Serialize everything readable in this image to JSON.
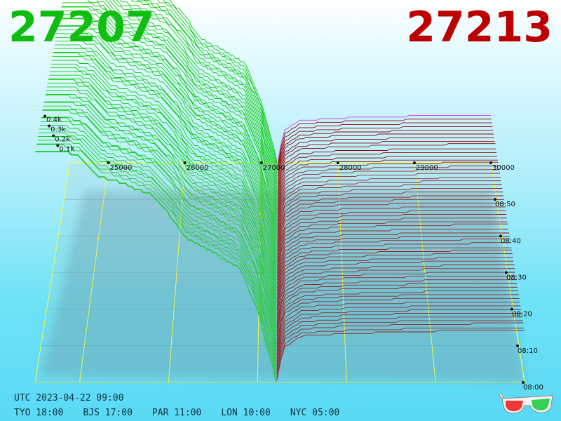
{
  "header": {
    "bid_price": "27207",
    "ask_price": "27213",
    "bid_color": "#10bb10",
    "ask_color": "#bb0000"
  },
  "footer": {
    "utc": "UTC 2023-04-22 09:00",
    "zones": [
      {
        "label": "TYO 18:00"
      },
      {
        "label": "BJS 17:00"
      },
      {
        "label": "PAR 11:00"
      },
      {
        "label": "LON 10:00"
      },
      {
        "label": "NYC 05:00"
      }
    ],
    "glasses_icon": "3d-glasses-icon"
  },
  "chart_data": {
    "type": "area",
    "title": "",
    "xlabel": "",
    "ylabel": "",
    "x_ticks": [
      {
        "value": 25000,
        "label": "25000"
      },
      {
        "value": 26000,
        "label": "26000"
      },
      {
        "value": 27000,
        "label": "27000"
      },
      {
        "value": 28000,
        "label": "28000"
      },
      {
        "value": 29000,
        "label": "29000"
      },
      {
        "value": 30000,
        "label": "30000"
      }
    ],
    "xlim": [
      24500,
      30000
    ],
    "z_ticks": [
      {
        "value": 100,
        "label": "0.1k"
      },
      {
        "value": 200,
        "label": "0.2k"
      },
      {
        "value": 300,
        "label": "0.3k"
      },
      {
        "value": 400,
        "label": "0.4k"
      }
    ],
    "zlim": [
      0,
      500
    ],
    "time_ticks": [
      {
        "value": 0,
        "label": "08:00"
      },
      {
        "value": 10,
        "label": "08:10"
      },
      {
        "value": 20,
        "label": "08:20"
      },
      {
        "value": 30,
        "label": "08:30"
      },
      {
        "value": 40,
        "label": "08:40"
      },
      {
        "value": 50,
        "label": "08:50"
      }
    ],
    "time_range_minutes": [
      0,
      60
    ],
    "snapshot_count": 60,
    "mid_price": 27210,
    "bid_series": {
      "name": "",
      "color": "#10cc10",
      "depth_profile": [
        {
          "price": 27205,
          "cum": 2
        },
        {
          "price": 27200,
          "cum": 8
        },
        {
          "price": 27150,
          "cum": 40
        },
        {
          "price": 27050,
          "cum": 95
        },
        {
          "price": 27000,
          "cum": 130
        },
        {
          "price": 26800,
          "cum": 205
        },
        {
          "price": 26500,
          "cum": 235
        },
        {
          "price": 26200,
          "cum": 260
        },
        {
          "price": 26000,
          "cum": 305
        },
        {
          "price": 25800,
          "cum": 340
        },
        {
          "price": 25500,
          "cum": 360
        },
        {
          "price": 25200,
          "cum": 375
        },
        {
          "price": 25000,
          "cum": 410
        },
        {
          "price": 24800,
          "cum": 420
        },
        {
          "price": 24500,
          "cum": 420
        }
      ]
    },
    "ask_series": {
      "name": "",
      "color": "#990000",
      "latest_color": "#cc44ff",
      "depth_profile": [
        {
          "price": 27215,
          "cum": 3
        },
        {
          "price": 27230,
          "cum": 20
        },
        {
          "price": 27300,
          "cum": 65
        },
        {
          "price": 27500,
          "cum": 85
        },
        {
          "price": 28000,
          "cum": 90
        },
        {
          "price": 28500,
          "cum": 92
        },
        {
          "price": 29000,
          "cum": 94
        },
        {
          "price": 29500,
          "cum": 95
        },
        {
          "price": 30000,
          "cum": 95
        }
      ]
    },
    "grid": true,
    "grid_color": "#ffff33"
  }
}
